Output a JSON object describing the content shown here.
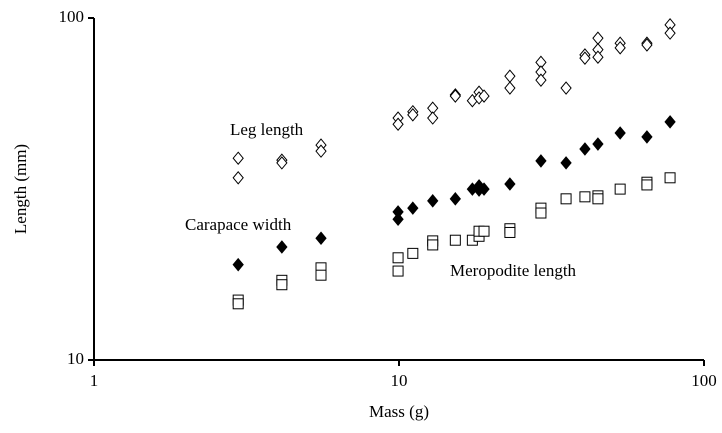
{
  "chart_data": {
    "type": "scatter",
    "x_label": "Mass (g)",
    "y_label": "Length (mm)",
    "xlim": [
      1,
      100
    ],
    "ylim": [
      10,
      100
    ],
    "xticks": [
      1,
      10,
      100
    ],
    "yticks": [
      10,
      100
    ],
    "x_log": true,
    "y_log": true,
    "grid": false,
    "series": [
      {
        "name": "Leg length",
        "color": "#000000",
        "marker": "open-diamond",
        "x": [
          2.97,
          2.97,
          4.13,
          4.13,
          5.55,
          5.55,
          9.93,
          9.93,
          11.1,
          11.1,
          12.9,
          12.9,
          15.3,
          15.3,
          17.4,
          18.3,
          18.3,
          19.0,
          23.1,
          23.1,
          29.2,
          29.2,
          29.2,
          35.3,
          40.7,
          40.7,
          44.9,
          44.9,
          44.9,
          53.1,
          53.1,
          65.0,
          65.0,
          77.4,
          77.4
        ],
        "y": [
          38.9,
          34.1,
          38.4,
          37.7,
          42.5,
          40.8,
          51.0,
          48.9,
          53.2,
          52.1,
          54.5,
          51.0,
          59.6,
          59.1,
          57.3,
          60.7,
          58.4,
          59.1,
          67.6,
          62.4,
          74.2,
          69.5,
          65.8,
          62.4,
          78.0,
          76.3,
          87.3,
          80.8,
          76.8,
          84.4,
          81.8,
          84.4,
          83.4,
          95.5,
          90.3
        ]
      },
      {
        "name": "Carapace width",
        "color": "#000000",
        "marker": "filled-diamond",
        "x": [
          2.97,
          4.13,
          5.55,
          9.93,
          9.93,
          11.1,
          12.9,
          15.3,
          17.4,
          18.3,
          18.3,
          19.0,
          23.1,
          29.2,
          35.3,
          40.7,
          44.9,
          53.1,
          65.0,
          77.4
        ],
        "y": [
          19.0,
          21.4,
          22.7,
          27.1,
          25.8,
          27.8,
          29.2,
          29.6,
          31.6,
          32.3,
          31.4,
          31.6,
          32.7,
          38.2,
          37.7,
          41.4,
          42.8,
          46.1,
          44.9,
          49.7
        ]
      },
      {
        "name": "Meropodite length",
        "color": "#000000",
        "marker": "open-square",
        "x": [
          2.97,
          2.97,
          4.13,
          4.13,
          5.55,
          5.55,
          9.93,
          9.93,
          11.1,
          12.9,
          12.9,
          15.3,
          17.4,
          18.3,
          18.3,
          19.0,
          23.1,
          23.1,
          29.2,
          29.2,
          35.3,
          40.7,
          44.9,
          44.9,
          53.1,
          65.0,
          65.0,
          77.4
        ],
        "y": [
          14.97,
          14.6,
          17.1,
          16.6,
          18.6,
          17.7,
          19.9,
          18.2,
          20.5,
          22.3,
          21.7,
          22.4,
          22.4,
          23.0,
          23.8,
          23.8,
          24.2,
          23.6,
          27.8,
          26.9,
          29.6,
          30.0,
          30.2,
          29.6,
          31.6,
          33.1,
          32.5,
          34.1
        ]
      }
    ]
  }
}
